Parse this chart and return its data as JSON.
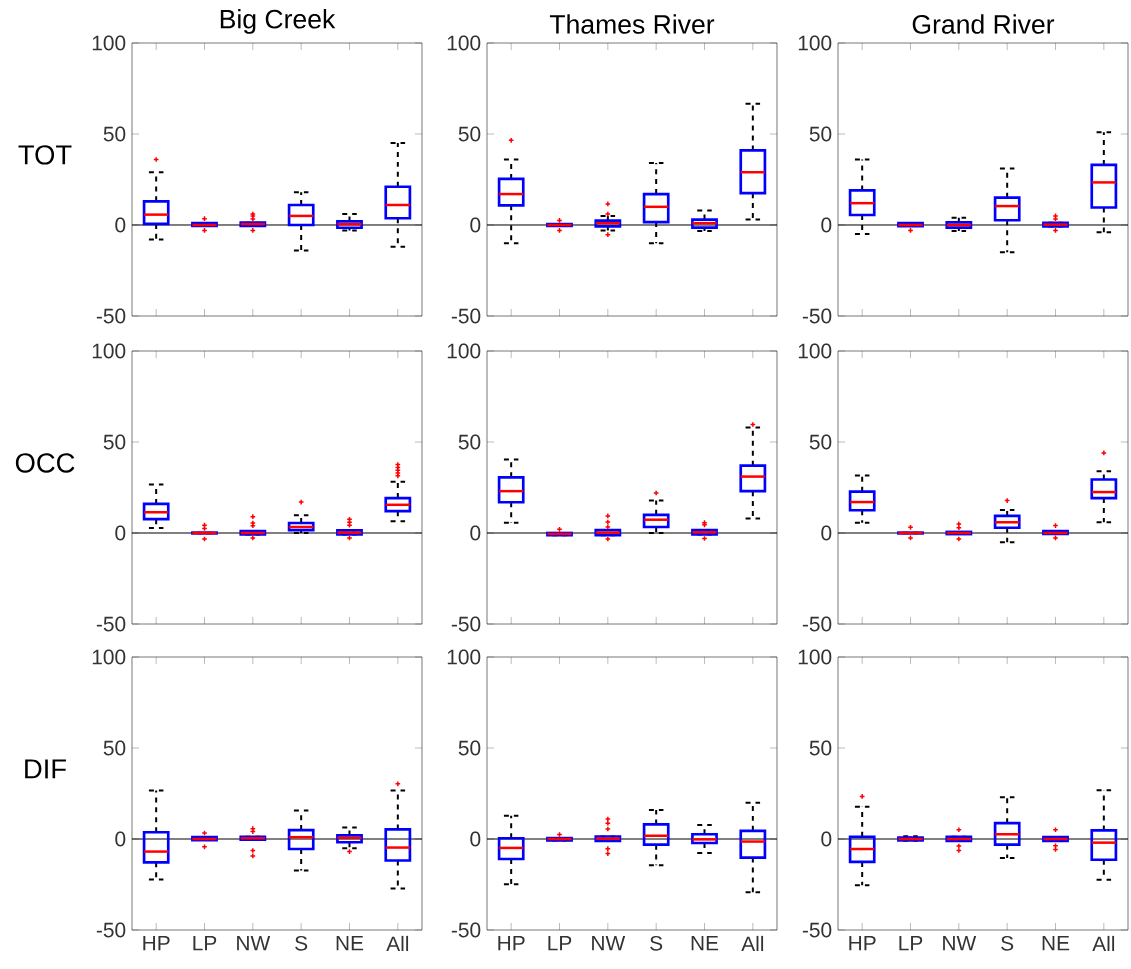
{
  "chart_data": [
    {
      "type": "box",
      "title": "Big Creek",
      "ylabel": "TOT",
      "categories": [
        null,
        null,
        null,
        null,
        null,
        null
      ],
      "ylim": [
        -50,
        100
      ],
      "yticks": [
        -50,
        0,
        50,
        100
      ],
      "tick_labels": "y",
      "ref_lines": [
        {
          "axis": "y",
          "value": 0,
          "color": "#000000"
        }
      ],
      "series": [
        {
          "color": "#0000ff",
          "boxes": [
            {
              "low": -8,
              "q1": 0.6,
              "median": 5.7,
              "q3": 13,
              "high": 29,
              "outliers": [
                36
              ]
            },
            {
              "low": -0.5,
              "q1": -0.5,
              "median": 0,
              "q3": 1,
              "high": 1,
              "outliers": [
                3.5,
                -3
              ]
            },
            {
              "low": -0.5,
              "q1": -0.5,
              "median": 0.5,
              "q3": 1.3,
              "high": 1.3,
              "outliers": [
                6,
                5,
                3.3,
                -3
              ]
            },
            {
              "low": -14,
              "q1": 0,
              "median": 5,
              "q3": 11,
              "high": 18
            },
            {
              "low": -3,
              "q1": -1.5,
              "median": 0.4,
              "q3": 2,
              "high": 6
            },
            {
              "low": -12,
              "q1": 3.7,
              "median": 11,
              "q3": 21,
              "high": 45
            }
          ]
        }
      ]
    },
    {
      "type": "box",
      "title": "Thames River",
      "categories": [
        null,
        null,
        null,
        null,
        null,
        null
      ],
      "ylim": [
        -50,
        100
      ],
      "yticks": [
        -50,
        0,
        50,
        100
      ],
      "tick_labels": "y",
      "ref_lines": [
        {
          "axis": "y",
          "value": 0,
          "color": "#000000"
        }
      ],
      "series": [
        {
          "color": "#0000ff",
          "boxes": [
            {
              "low": -10,
              "q1": 10.8,
              "median": 17,
              "q3": 25.3,
              "high": 36,
              "outliers": [
                46.5
              ]
            },
            {
              "low": -0.5,
              "q1": -0.5,
              "median": 0,
              "q3": 0.5,
              "high": 0.5,
              "outliers": [
                2.5,
                -3
              ]
            },
            {
              "low": -3,
              "q1": -0.8,
              "median": 1,
              "q3": 2.4,
              "high": 5,
              "outliers": [
                11.6,
                6,
                -5.3
              ]
            },
            {
              "low": -10,
              "q1": 1.6,
              "median": 10,
              "q3": 17,
              "high": 34
            },
            {
              "low": -3.3,
              "q1": -1.4,
              "median": 1,
              "q3": 3,
              "high": 8
            },
            {
              "low": 3,
              "q1": 17.5,
              "median": 29,
              "q3": 41,
              "high": 66.6
            }
          ]
        }
      ]
    },
    {
      "type": "box",
      "title": "Grand River",
      "categories": [
        null,
        null,
        null,
        null,
        null,
        null
      ],
      "ylim": [
        -50,
        100
      ],
      "yticks": [
        -50,
        0,
        50,
        100
      ],
      "tick_labels": "y",
      "ref_lines": [
        {
          "axis": "y",
          "value": 0,
          "color": "#000000"
        }
      ],
      "series": [
        {
          "color": "#0000ff",
          "boxes": [
            {
              "low": -5,
              "q1": 5.5,
              "median": 12,
              "q3": 19,
              "high": 36
            },
            {
              "low": -0.6,
              "q1": -0.6,
              "median": 0,
              "q3": 1,
              "high": 1,
              "outliers": [
                -3
              ]
            },
            {
              "low": -3.3,
              "q1": -1.4,
              "median": 0,
              "q3": 1.4,
              "high": 4
            },
            {
              "low": -15,
              "q1": 2.6,
              "median": 10.4,
              "q3": 15,
              "high": 31
            },
            {
              "low": -0.8,
              "q1": -0.8,
              "median": 0.2,
              "q3": 1.2,
              "high": 1.2,
              "outliers": [
                5,
                3.3,
                -3
              ]
            },
            {
              "low": -4,
              "q1": 9.6,
              "median": 23.4,
              "q3": 33,
              "high": 51
            }
          ]
        }
      ]
    },
    {
      "type": "box",
      "ylabel": "OCC",
      "categories": [
        null,
        null,
        null,
        null,
        null,
        null
      ],
      "ylim": [
        -50,
        100
      ],
      "yticks": [
        -50,
        0,
        50,
        100
      ],
      "tick_labels": "y",
      "ref_lines": [
        {
          "axis": "y",
          "value": 0,
          "color": "#000000"
        }
      ],
      "series": [
        {
          "color": "#0000ff",
          "boxes": [
            {
              "low": 2.7,
              "q1": 7.6,
              "median": 11.4,
              "q3": 16,
              "high": 26.7
            },
            {
              "low": -0.2,
              "q1": -0.2,
              "median": 0,
              "q3": 0.2,
              "high": 0.2,
              "outliers": [
                4.3,
                2.5,
                -3.3
              ]
            },
            {
              "low": -0.8,
              "q1": -0.8,
              "median": 0,
              "q3": 1,
              "high": 1,
              "outliers": [
                9,
                5.5,
                4,
                -2.7
              ]
            },
            {
              "low": 0,
              "q1": 1.6,
              "median": 3.3,
              "q3": 5.5,
              "high": 9.8,
              "outliers": [
                17
              ]
            },
            {
              "low": -0.8,
              "q1": -0.8,
              "median": 0.2,
              "q3": 1.4,
              "high": 1.4,
              "outliers": [
                7.5,
                5.9,
                4.3,
                -2.7
              ]
            },
            {
              "low": 6.5,
              "q1": 12,
              "median": 15.5,
              "q3": 19.2,
              "high": 28.2,
              "outliers": [
                37.6,
                36,
                34.5,
                33,
                31.4
              ]
            }
          ]
        }
      ]
    },
    {
      "type": "box",
      "categories": [
        null,
        null,
        null,
        null,
        null,
        null
      ],
      "ylim": [
        -50,
        100
      ],
      "yticks": [
        -50,
        0,
        50,
        100
      ],
      "tick_labels": "y",
      "ref_lines": [
        {
          "axis": "y",
          "value": 0,
          "color": "#000000"
        }
      ],
      "series": [
        {
          "color": "#0000ff",
          "boxes": [
            {
              "low": 5.7,
              "q1": 16.9,
              "median": 23,
              "q3": 30.6,
              "high": 40.4
            },
            {
              "low": -1.2,
              "q1": -1.2,
              "median": -0.5,
              "q3": 0,
              "high": 0,
              "outliers": [
                2
              ]
            },
            {
              "low": -1.2,
              "q1": -1.2,
              "median": 0.2,
              "q3": 1.6,
              "high": 1.6,
              "outliers": [
                9.4,
                6,
                3.3,
                -3.3
              ]
            },
            {
              "low": 0,
              "q1": 3.3,
              "median": 7.3,
              "q3": 10,
              "high": 17.8,
              "outliers": [
                22
              ]
            },
            {
              "low": -0.8,
              "q1": -0.8,
              "median": 0.4,
              "q3": 1.6,
              "high": 1.6,
              "outliers": [
                5.7,
                4.5,
                -3
              ]
            },
            {
              "low": 8,
              "q1": 23,
              "median": 31,
              "q3": 37,
              "high": 58,
              "outliers": [
                59.6
              ]
            }
          ]
        }
      ]
    },
    {
      "type": "box",
      "categories": [
        null,
        null,
        null,
        null,
        null,
        null
      ],
      "ylim": [
        -50,
        100
      ],
      "yticks": [
        -50,
        0,
        50,
        100
      ],
      "tick_labels": "y",
      "ref_lines": [
        {
          "axis": "y",
          "value": 0,
          "color": "#000000"
        }
      ],
      "series": [
        {
          "color": "#0000ff",
          "boxes": [
            {
              "low": 5.7,
              "q1": 12.5,
              "median": 17,
              "q3": 22.7,
              "high": 31.6
            },
            {
              "low": -0.2,
              "q1": -0.2,
              "median": 0,
              "q3": 0.2,
              "high": 0.2,
              "outliers": [
                3.1,
                -2.7
              ]
            },
            {
              "low": -0.6,
              "q1": -0.6,
              "median": 0,
              "q3": 0.6,
              "high": 0.6,
              "outliers": [
                4.9,
                2.9,
                -3.3
              ]
            },
            {
              "low": -5.1,
              "q1": 2.9,
              "median": 5.9,
              "q3": 9.4,
              "high": 12.7,
              "outliers": [
                17.8
              ]
            },
            {
              "low": -0.5,
              "q1": -0.5,
              "median": 0,
              "q3": 1,
              "high": 1,
              "outliers": [
                4.1,
                -2.7
              ]
            },
            {
              "low": 5.9,
              "q1": 19.2,
              "median": 22.5,
              "q3": 29.4,
              "high": 34,
              "outliers": [
                44
              ]
            }
          ]
        }
      ]
    },
    {
      "type": "box",
      "ylabel": "DIF",
      "categories": [
        "HP",
        "LP",
        "NW",
        "S",
        "NE",
        "All"
      ],
      "ylim": [
        -50,
        100
      ],
      "yticks": [
        -50,
        0,
        50,
        100
      ],
      "ref_lines": [
        {
          "axis": "y",
          "value": 0,
          "color": "#000000"
        }
      ],
      "series": [
        {
          "color": "#0000ff",
          "boxes": [
            {
              "low": -22.2,
              "q1": -12.8,
              "median": -6.9,
              "q3": 3.7,
              "high": 26.6
            },
            {
              "low": -0.6,
              "q1": -0.6,
              "median": 0,
              "q3": 1,
              "high": 1,
              "outliers": [
                3.3,
                -4.3
              ]
            },
            {
              "low": -0.4,
              "q1": -0.4,
              "median": 0.4,
              "q3": 1.2,
              "high": 1.2,
              "outliers": [
                5.7,
                4.1,
                -6.3,
                -9.3
              ]
            },
            {
              "low": -17.3,
              "q1": -5.5,
              "median": 1,
              "q3": 4.9,
              "high": 15.7
            },
            {
              "low": -5.1,
              "q1": -1.8,
              "median": 0.6,
              "q3": 2,
              "high": 6.3,
              "outliers": [
                -6.9
              ]
            },
            {
              "low": -27.2,
              "q1": -11.8,
              "median": -4.7,
              "q3": 5.3,
              "high": 26.6,
              "outliers": [
                30.3
              ]
            }
          ]
        }
      ]
    },
    {
      "type": "box",
      "categories": [
        "HP",
        "LP",
        "NW",
        "S",
        "NE",
        "All"
      ],
      "ylim": [
        -50,
        100
      ],
      "yticks": [
        -50,
        0,
        50,
        100
      ],
      "ref_lines": [
        {
          "axis": "y",
          "value": 0,
          "color": "#000000"
        }
      ],
      "series": [
        {
          "color": "#0000ff",
          "boxes": [
            {
              "low": -24.8,
              "q1": -11,
              "median": -4.9,
              "q3": 0.4,
              "high": 12.8
            },
            {
              "low": -0.8,
              "q1": -0.8,
              "median": 0,
              "q3": 0.5,
              "high": 0.5,
              "outliers": [
                2.5
              ]
            },
            {
              "low": -1,
              "q1": -1,
              "median": 0.2,
              "q3": 1.4,
              "high": 1.4,
              "outliers": [
                11,
                8.7,
                5.5,
                -5.3,
                -8
              ]
            },
            {
              "low": -14.4,
              "q1": -3.1,
              "median": 1.8,
              "q3": 8,
              "high": 16
            },
            {
              "low": -7.7,
              "q1": -2.2,
              "median": -0.2,
              "q3": 2.6,
              "high": 7.7
            },
            {
              "low": -29.3,
              "q1": -10.2,
              "median": -1.4,
              "q3": 4.5,
              "high": 19.9
            }
          ]
        }
      ]
    },
    {
      "type": "box",
      "categories": [
        "HP",
        "LP",
        "NW",
        "S",
        "NE",
        "All"
      ],
      "ylim": [
        -50,
        100
      ],
      "yticks": [
        -50,
        0,
        50,
        100
      ],
      "ref_lines": [
        {
          "axis": "y",
          "value": 0,
          "color": "#000000"
        }
      ],
      "series": [
        {
          "color": "#0000ff",
          "boxes": [
            {
              "low": -25.4,
              "q1": -12.6,
              "median": -5.5,
              "q3": 1.2,
              "high": 17.7,
              "outliers": [
                23.4
              ]
            },
            {
              "low": -1,
              "q1": -0.8,
              "median": 0,
              "q3": 0.8,
              "high": 1.5
            },
            {
              "low": -1,
              "q1": -1,
              "median": 0,
              "q3": 1.2,
              "high": 1.2,
              "outliers": [
                5.1,
                -3.9,
                -6.3
              ]
            },
            {
              "low": -10.4,
              "q1": -3.1,
              "median": 2.6,
              "q3": 8.7,
              "high": 23
            },
            {
              "low": -1,
              "q1": -1,
              "median": 0,
              "q3": 1,
              "high": 1,
              "outliers": [
                5.1,
                -3.7,
                -5.7
              ]
            },
            {
              "low": -22.4,
              "q1": -11.4,
              "median": -2,
              "q3": 4.7,
              "high": 26.8
            }
          ]
        }
      ]
    }
  ]
}
